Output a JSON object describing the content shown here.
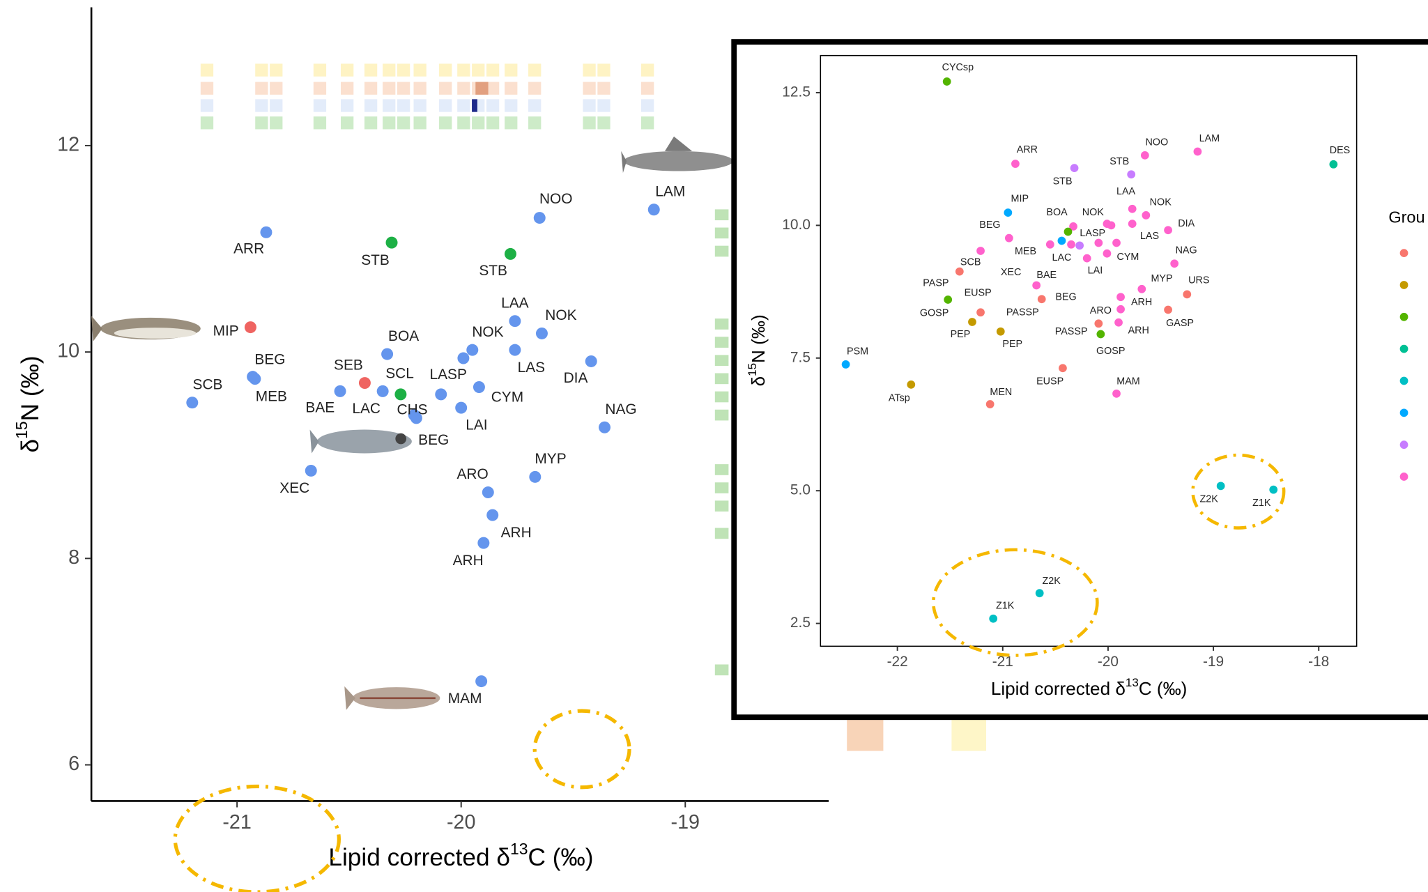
{
  "chart_data": [
    {
      "type": "scatter",
      "x_label": [
        "Lipid corrected δ",
        "13",
        "C (‰)"
      ],
      "y_label": [
        "δ",
        "15",
        "N (‰)"
      ],
      "xlim": [
        -21.65,
        -18.36
      ],
      "ylim": [
        5.65,
        13.34
      ],
      "xticks": [
        -21,
        -20,
        -19
      ],
      "yticks": [
        6,
        8,
        10,
        12
      ],
      "x": [
        -20.87,
        -20.31,
        -19.78,
        -19.65,
        -19.14,
        -20.94,
        -20.93,
        -20.92,
        -21.2,
        -20.54,
        -20.43,
        -20.35,
        -20.27,
        -20.33,
        -20.21,
        -20.2,
        -20.09,
        -19.95,
        -20.0,
        -19.76,
        -19.64,
        -19.99,
        -19.76,
        -19.92,
        -19.42,
        -19.36,
        -20.67,
        -19.67,
        -19.88,
        -19.86,
        -19.9,
        -19.91
      ],
      "y": [
        11.16,
        11.06,
        10.95,
        11.3,
        11.38,
        10.24,
        9.76,
        9.74,
        9.51,
        9.62,
        9.7,
        9.62,
        9.59,
        9.98,
        9.39,
        9.36,
        9.59,
        10.02,
        9.46,
        10.3,
        10.18,
        9.94,
        10.02,
        9.66,
        9.91,
        9.27,
        8.85,
        8.79,
        8.64,
        8.42,
        8.15,
        6.81
      ],
      "labels": [
        "ARR",
        "STB",
        "STB",
        "NOO",
        "LAM",
        "MIP",
        "BEG",
        "MEB",
        "SCB",
        "BAE",
        "SEB",
        "LAC",
        "SCL",
        "BOA",
        "CHS",
        "BEG",
        "LASP",
        "NOK",
        "LAI",
        "LAA",
        "NOK",
        null,
        "LAS",
        "CYM",
        "DIA",
        "NAG",
        "XEC",
        "MYP",
        "ARO",
        "ARH",
        "ARH",
        "MAM"
      ],
      "colors": [
        "#6495ED",
        "#1DB045",
        "#1DB045",
        "#6495ED",
        "#6495ED",
        "#EF6461",
        "#6495ED",
        "#6495ED",
        "#6495ED",
        "#6495ED",
        "#EF6461",
        "#6495ED",
        "#1DB045",
        "#6495ED",
        "#6495ED",
        "#6495ED",
        "#6495ED",
        "#6495ED",
        "#6495ED",
        "#6495ED",
        "#6495ED",
        "#6495ED",
        "#6495ED",
        "#6495ED",
        "#6495ED",
        "#6495ED",
        "#6495ED",
        "#6495ED",
        "#6495ED",
        "#6495ED",
        "#6495ED",
        "#6495ED"
      ]
    },
    {
      "type": "scatter",
      "x_label": [
        "Lipid corrected δ",
        "13",
        "C (‰)"
      ],
      "y_label": [
        "δ",
        "15",
        "N (‰)"
      ],
      "xlim": [
        -22.73,
        -17.64
      ],
      "ylim": [
        2.07,
        13.2
      ],
      "xticks": [
        -22,
        -21,
        -20,
        -19,
        -18
      ],
      "yticks": [
        2.5,
        {
          "value": 5,
          "label": "5.0"
        },
        7.5,
        {
          "value": 10,
          "label": "10.0"
        },
        12.5
      ],
      "x": [
        -21.53,
        -20.88,
        -20.32,
        -19.78,
        -19.65,
        -19.15,
        -17.86,
        -20.95,
        -20.94,
        -21.21,
        -21.41,
        -20.33,
        -19.97,
        -19.77,
        -19.64,
        -19.43,
        -20.38,
        -20.55,
        -20.44,
        -20.35,
        -20.27,
        -20.09,
        -20.01,
        -19.77,
        -19.92,
        -20.01,
        -20.2,
        -19.37,
        -20.68,
        -20.63,
        -21.52,
        -21.21,
        -21.29,
        -21.02,
        -19.68,
        -19.25,
        -19.88,
        -19.88,
        -19.43,
        -20.09,
        -19.9,
        -20.07,
        -22.49,
        -21.87,
        -20.43,
        -19.92,
        -21.12,
        -18.93,
        -18.43,
        -20.65,
        -21.09
      ],
      "y": [
        12.71,
        11.16,
        11.08,
        10.96,
        11.32,
        11.39,
        11.15,
        10.24,
        9.76,
        9.52,
        9.13,
        9.98,
        10.0,
        10.31,
        10.19,
        9.91,
        9.88,
        9.64,
        9.71,
        9.64,
        9.62,
        9.67,
        10.03,
        10.03,
        9.67,
        9.47,
        9.38,
        9.28,
        8.87,
        8.61,
        8.6,
        8.36,
        8.18,
        8.0,
        8.8,
        8.7,
        8.65,
        8.42,
        8.41,
        8.15,
        8.17,
        7.95,
        7.38,
        7.0,
        7.31,
        6.83,
        6.63,
        5.09,
        5.02,
        3.07,
        2.59
      ],
      "labels": [
        "CYCsp",
        "ARR",
        "STB",
        "STB",
        "NOO",
        "LAM",
        "DES",
        "MIP",
        "BEG",
        "SCB",
        "PASP",
        "BOA",
        "NOK",
        "LAA",
        "NOK",
        "DIA",
        "LASP",
        "MEB",
        "LAC",
        "BAE",
        "BEG",
        null,
        null,
        "LAS",
        null,
        "CYM",
        "LAI",
        "NAG",
        "XEC",
        "PASSP",
        "GOSP",
        "EUSP",
        "PEP",
        "PEP",
        "MYP",
        "URS",
        "ARH",
        "ARO",
        "GASP",
        "PASSP",
        "ARH",
        "GOSP",
        "PSM",
        "ATsp",
        "EUSP",
        "MAM",
        "MEN",
        "Z2K",
        "Z1K",
        "Z2K",
        "Z1K"
      ],
      "colors": [
        "#53B400",
        "#FF61CC",
        "#C77CFF",
        "#C77CFF",
        "#FF61CC",
        "#FF61CC",
        "#00C094",
        "#00A9FF",
        "#FF61CC",
        "#FF61CC",
        "#F8766D",
        "#FF61CC",
        "#FF61CC",
        "#FF61CC",
        "#FF61CC",
        "#FF61CC",
        "#53B400",
        "#FF61CC",
        "#00A9FF",
        "#FF61CC",
        "#C77CFF",
        "#FF61CC",
        "#FF61CC",
        "#FF61CC",
        "#FF61CC",
        "#FF61CC",
        "#FF61CC",
        "#FF61CC",
        "#FF61CC",
        "#F8766D",
        "#53B400",
        "#F8766D",
        "#C49A00",
        "#C49A00",
        "#FF61CC",
        "#F8766D",
        "#FF61CC",
        "#FF61CC",
        "#F8766D",
        "#F8766D",
        "#FF61CC",
        "#53B400",
        "#00A9FF",
        "#C49A00",
        "#F8766D",
        "#FF61CC",
        "#F8766D",
        "#00BFC4",
        "#00BFC4",
        "#00BFC4",
        "#00BFC4"
      ],
      "legend": {
        "title": "Grou",
        "colors": [
          "#F8766D",
          "#C49A00",
          "#53B400",
          "#00C094",
          "#00BFC4",
          "#00A9FF",
          "#C77CFF",
          "#FF61CC"
        ]
      }
    }
  ]
}
